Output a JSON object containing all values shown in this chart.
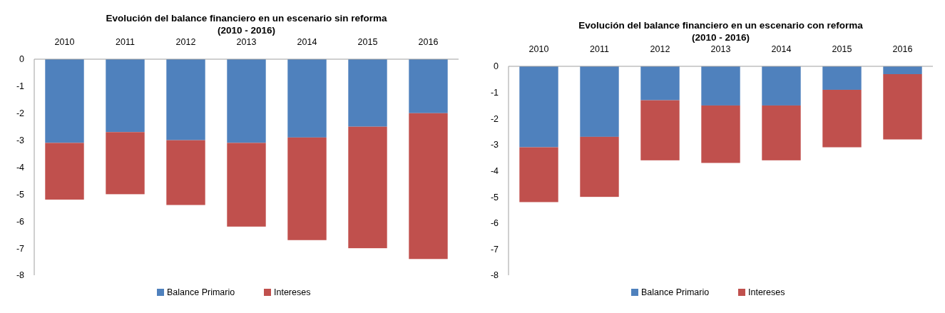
{
  "chart_data": [
    {
      "type": "bar",
      "title": "Evolución del balance financiero en un escenario sin reforma\n(2010 - 2016)",
      "categories": [
        "2010",
        "2011",
        "2012",
        "2013",
        "2014",
        "2015",
        "2016"
      ],
      "stacked": true,
      "series": [
        {
          "name": "Balance Primario",
          "color": "#4f81bd",
          "values": [
            -3.1,
            -2.7,
            -3.0,
            -3.1,
            -2.9,
            -2.5,
            -2.0
          ]
        },
        {
          "name": "Intereses",
          "color": "#c0504d",
          "values": [
            -2.1,
            -2.3,
            -2.4,
            -3.1,
            -3.8,
            -4.5,
            -5.4
          ]
        }
      ],
      "ylim": [
        -8,
        0
      ],
      "yticks": [
        -8,
        -7,
        -6,
        -5,
        -4,
        -3,
        -2,
        -1,
        0
      ],
      "grid": false,
      "legend": "bottom"
    },
    {
      "type": "bar",
      "title": "Evolución del balance financiero en un escenario con reforma\n(2010 - 2016)",
      "categories": [
        "2010",
        "2011",
        "2012",
        "2013",
        "2014",
        "2015",
        "2016"
      ],
      "stacked": true,
      "series": [
        {
          "name": "Balance Primario",
          "color": "#4f81bd",
          "values": [
            -3.1,
            -2.7,
            -1.3,
            -1.5,
            -1.5,
            -0.9,
            -0.3
          ]
        },
        {
          "name": "Intereses",
          "color": "#c0504d",
          "values": [
            -2.1,
            -2.3,
            -2.3,
            -2.2,
            -2.1,
            -2.2,
            -2.5
          ]
        }
      ],
      "ylim": [
        -8,
        0
      ],
      "yticks": [
        -8,
        -7,
        -6,
        -5,
        -4,
        -3,
        -2,
        -1,
        0
      ],
      "grid": false,
      "legend": "bottom"
    }
  ]
}
